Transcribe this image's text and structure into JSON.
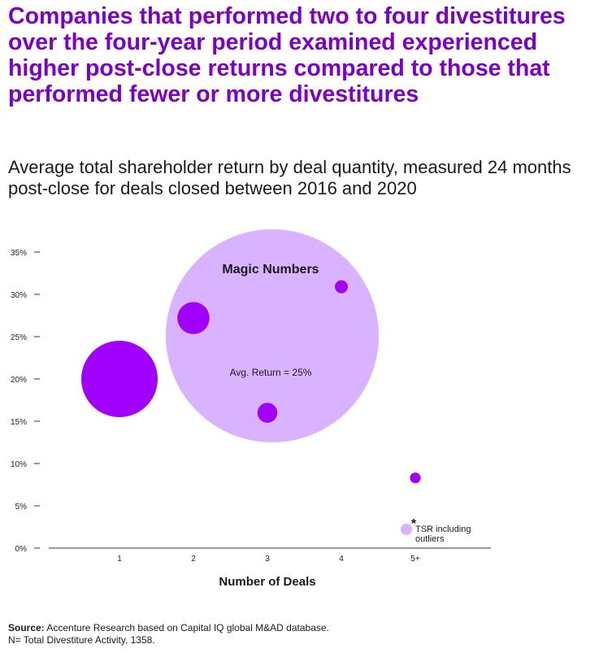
{
  "headline": "Companies that performed two to four divestitures over the four-year period examined experienced higher post-close returns compared to those that performed fewer or more divestitures",
  "subtitle": "Average total shareholder return by deal quantity, measured 24 months post-close for deals closed between 2016 and 2020",
  "colors": {
    "headline": "#7B00C8",
    "deal_bubble": "#A100FF",
    "highlight_bubble": "#D9B3FF"
  },
  "chart_data": {
    "type": "scatter",
    "xlabel": "Number of Deals",
    "ylabel": "",
    "x_categories": [
      "1",
      "2",
      "3",
      "4",
      "5+"
    ],
    "y_ticks": [
      "0%",
      "5%",
      "10%",
      "15%",
      "20%",
      "25%",
      "30%",
      "35%"
    ],
    "ylim": [
      0,
      35
    ],
    "series": [
      {
        "points": [
          {
            "x": "1",
            "y": 20,
            "relative_size": 1.0
          },
          {
            "x": "2",
            "y": 27.2,
            "relative_size": 0.42
          },
          {
            "x": "3",
            "y": 16,
            "relative_size": 0.26
          },
          {
            "x": "4",
            "y": 30.9,
            "relative_size": 0.17
          },
          {
            "x": "5+",
            "y": 8.3,
            "relative_size": 0.14
          }
        ]
      }
    ],
    "highlight": {
      "label": "Magic Numbers",
      "note": "Avg. Return = 25%",
      "x_range": [
        "2",
        "4"
      ],
      "y_center": 25
    },
    "legend": {
      "marker": "*",
      "label_line1": "TSR including",
      "label_line2": "outliers",
      "position": "bottom-right"
    }
  },
  "source": {
    "label": "Source:",
    "text": " Accenture Research based on Capital IQ global M&AD database.",
    "note": "N= Total Divestiture Activity, 1358."
  }
}
